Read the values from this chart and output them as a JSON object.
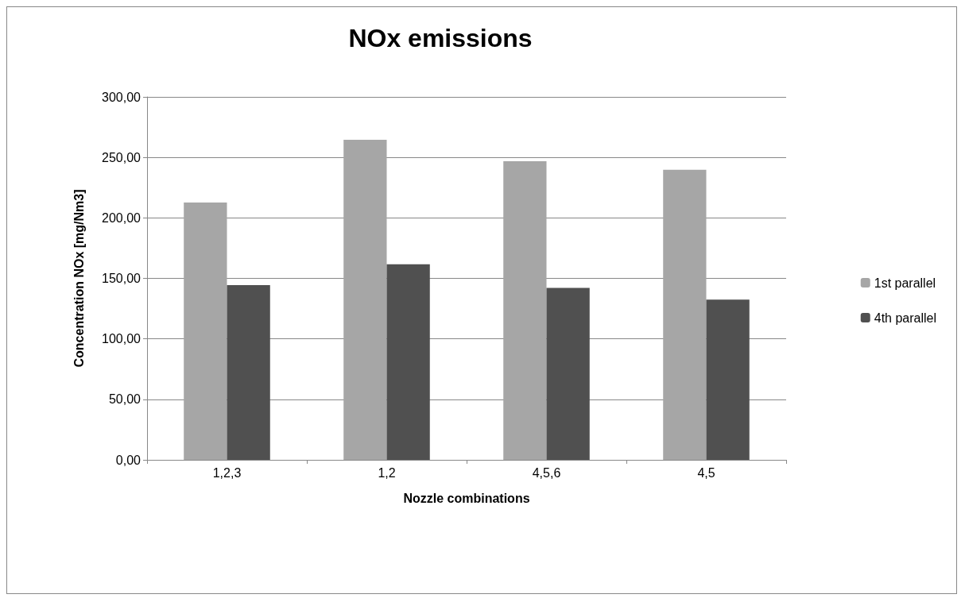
{
  "chart_data": {
    "type": "bar",
    "title": "NOx emissions",
    "xlabel": "Nozzle combinations",
    "ylabel": "Concentration NOx [mg/Nm3]",
    "categories": [
      "1,2,3",
      "1,2",
      "4,5,6",
      "4,5"
    ],
    "series": [
      {
        "name": "1st parallel",
        "color": "#a6a6a6",
        "values": [
          212.7,
          264.6,
          246.9,
          239.8
        ]
      },
      {
        "name": "4th parallel",
        "color": "#505050",
        "values": [
          144.4,
          161.7,
          142.1,
          132.5
        ]
      }
    ],
    "ylim": [
      0,
      300
    ],
    "yticks": [
      {
        "value": 0,
        "label": "0,00"
      },
      {
        "value": 50,
        "label": "50,00"
      },
      {
        "value": 100,
        "label": "100,00"
      },
      {
        "value": 150,
        "label": "150,00"
      },
      {
        "value": 200,
        "label": "200,00"
      },
      {
        "value": 250,
        "label": "250,00"
      },
      {
        "value": 300,
        "label": "300,00"
      }
    ],
    "grid": "y",
    "legend": "right"
  }
}
